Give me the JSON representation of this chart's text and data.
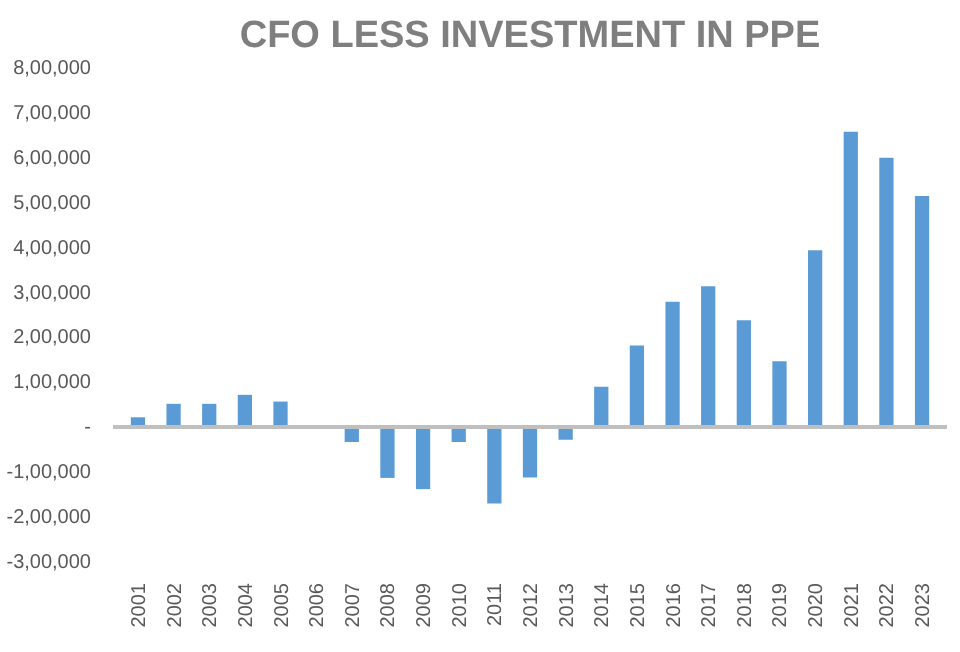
{
  "chart_data": {
    "type": "bar",
    "title": "CFO LESS INVESTMENT IN PPE",
    "categories": [
      "2001",
      "2002",
      "2003",
      "2004",
      "2005",
      "2006",
      "2007",
      "2008",
      "2009",
      "2010",
      "2011",
      "2012",
      "2013",
      "2014",
      "2015",
      "2016",
      "2017",
      "2018",
      "2019",
      "2020",
      "2021",
      "2022",
      "2023"
    ],
    "values": [
      20000,
      50000,
      50000,
      70000,
      55000,
      0,
      -35000,
      -115000,
      -140000,
      -35000,
      -172000,
      -114000,
      -30000,
      88000,
      180000,
      277000,
      312000,
      236000,
      145000,
      392000,
      656000,
      598000,
      513000
    ],
    "color": "#5b9bd5",
    "ylim": [
      -300000,
      800000
    ],
    "yticks": [
      {
        "value": -300000,
        "label": "-3,00,000"
      },
      {
        "value": -200000,
        "label": "-2,00,000"
      },
      {
        "value": -100000,
        "label": "-1,00,000"
      },
      {
        "value": 0,
        "label": "-"
      },
      {
        "value": 100000,
        "label": "1,00,000"
      },
      {
        "value": 200000,
        "label": "2,00,000"
      },
      {
        "value": 300000,
        "label": "3,00,000"
      },
      {
        "value": 400000,
        "label": "4,00,000"
      },
      {
        "value": 500000,
        "label": "5,00,000"
      },
      {
        "value": 600000,
        "label": "6,00,000"
      },
      {
        "value": 700000,
        "label": "7,00,000"
      },
      {
        "value": 800000,
        "label": "8,00,000"
      }
    ]
  }
}
